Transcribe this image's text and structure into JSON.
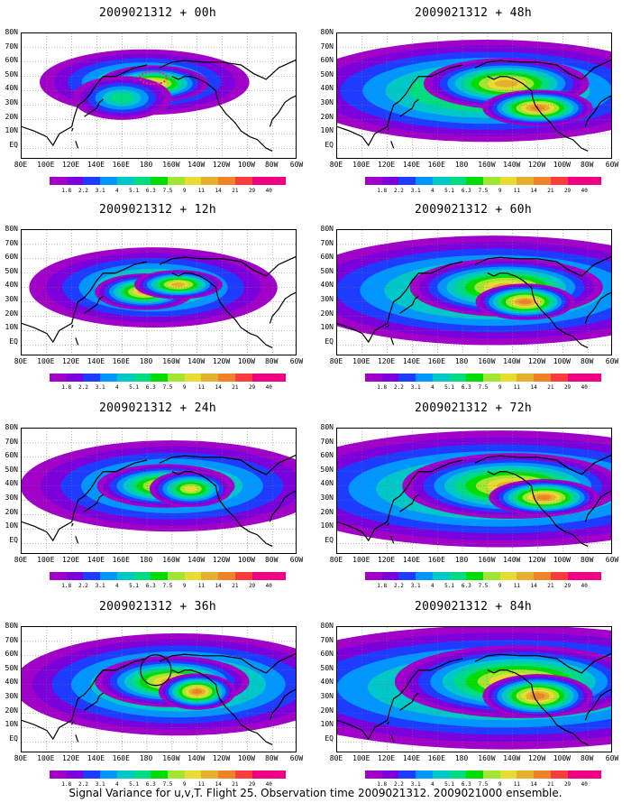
{
  "panels": [
    {
      "title": "2009021312 + 00h",
      "lead": 0
    },
    {
      "title": "2009021312 + 48h",
      "lead": 48
    },
    {
      "title": "2009021312 + 12h",
      "lead": 12
    },
    {
      "title": "2009021312 + 60h",
      "lead": 60
    },
    {
      "title": "2009021312 + 24h",
      "lead": 24
    },
    {
      "title": "2009021312 + 72h",
      "lead": 72
    },
    {
      "title": "2009021312 + 36h",
      "lead": 36
    },
    {
      "title": "2009021312 + 84h",
      "lead": 84
    }
  ],
  "lat_labels": [
    "80N",
    "70N",
    "60N",
    "50N",
    "40N",
    "30N",
    "20N",
    "10N",
    "EQ"
  ],
  "lon_labels": [
    "80E",
    "100E",
    "120E",
    "140E",
    "160E",
    "180",
    "160W",
    "140W",
    "120W",
    "100W",
    "80W",
    "60W"
  ],
  "colorbar": {
    "labels": [
      "1.8",
      "2.2",
      "3.1",
      "4",
      "5.1",
      "6.3",
      "7.5",
      "9",
      "11",
      "14",
      "21",
      "29",
      "40"
    ],
    "colors": [
      "#a000c8",
      "#7c00dc",
      "#1e3cff",
      "#0096ff",
      "#00c8c8",
      "#00dc82",
      "#00dc00",
      "#a0e632",
      "#e6dc32",
      "#e6af2d",
      "#f08228",
      "#fa3c3c",
      "#f00082"
    ]
  },
  "caption": "Signal Variance for u,v,T. Flight 25. Observation time 2009021312. 2009021000 ensemble."
}
